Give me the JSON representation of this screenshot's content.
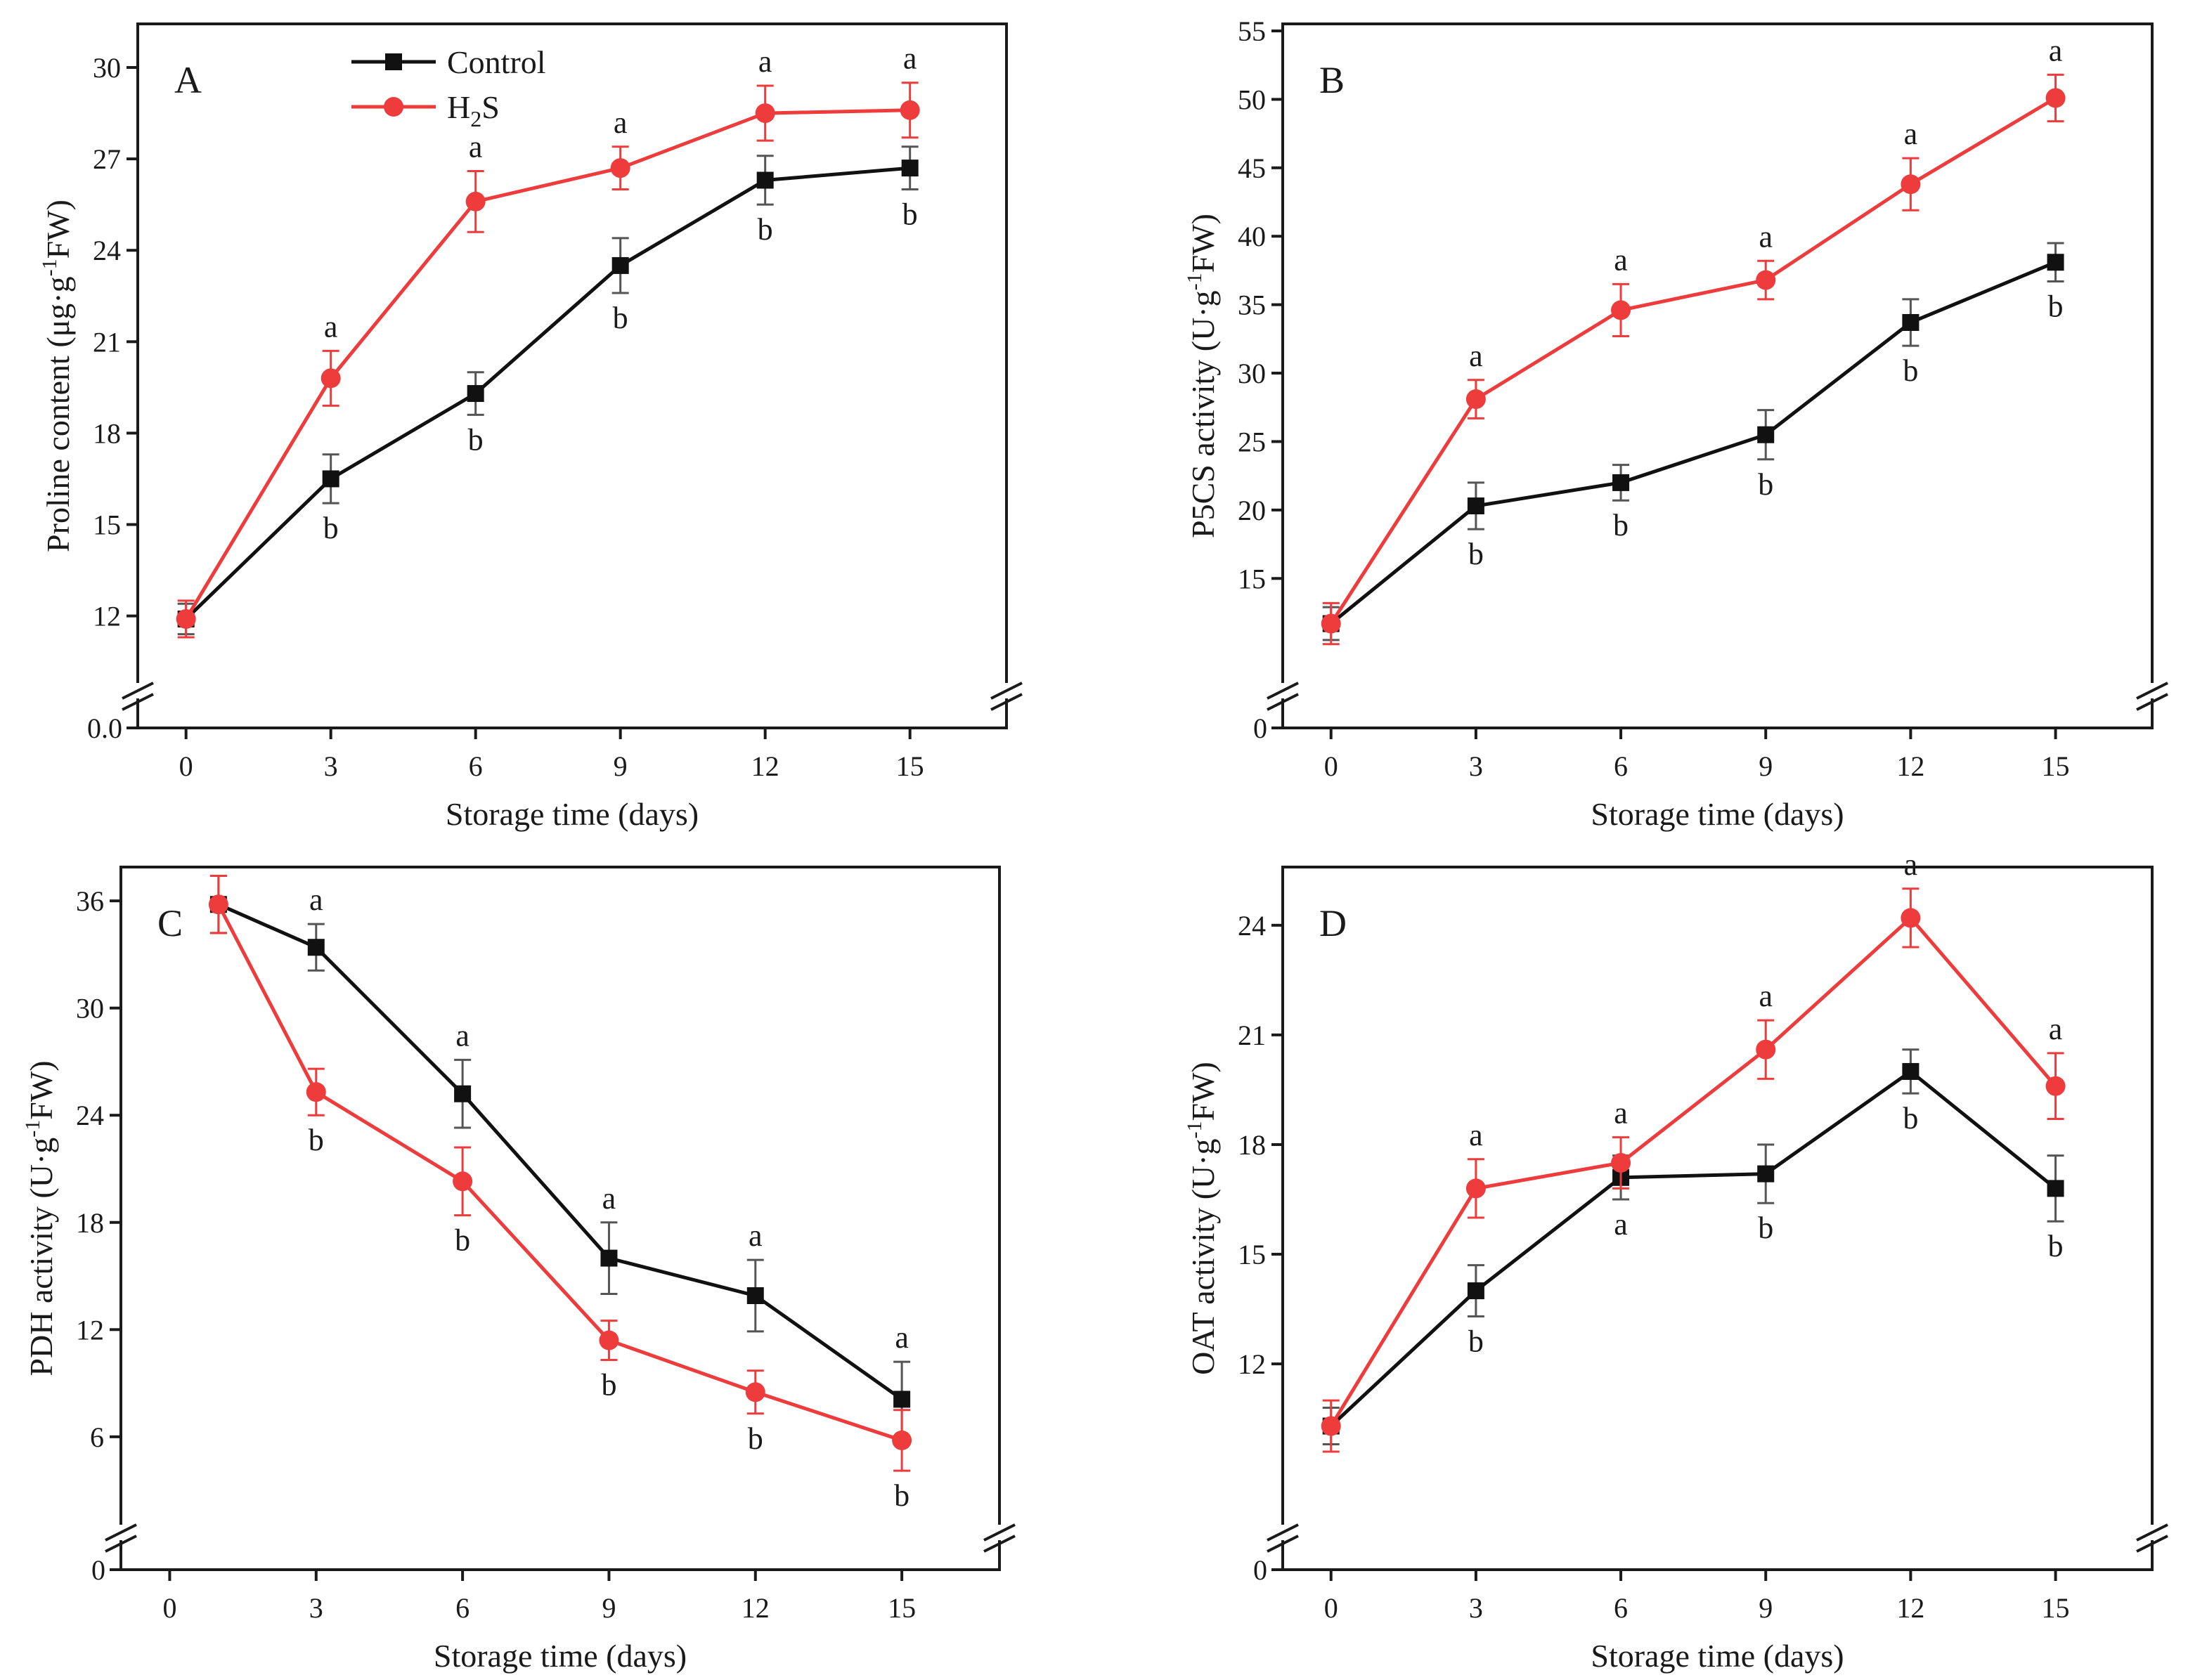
{
  "figure": {
    "legend": {
      "control": {
        "label": "Control",
        "color": "#111111",
        "marker": "square"
      },
      "h2s": {
        "label_main": "H",
        "label_sub": "2",
        "label_end": "S",
        "color": "#ee3b3b",
        "marker": "circle"
      }
    }
  },
  "chart_data": [
    {
      "panel": "A",
      "type": "line",
      "letter": "A",
      "xlabel": "Storage time (days)",
      "ylabel_main": "Proline content (μg·g",
      "ylabel_sup": "-1",
      "ylabel_end": "FW)",
      "x": [
        0,
        3,
        6,
        9,
        12,
        15
      ],
      "xticks": [
        "0",
        "3",
        "6",
        "9",
        "12",
        "15"
      ],
      "xlim": [
        -1,
        17
      ],
      "yticks": [
        {
          "v": 12,
          "label": "12"
        },
        {
          "v": 15,
          "label": "15"
        },
        {
          "v": 18,
          "label": "18"
        },
        {
          "v": 21,
          "label": "21"
        },
        {
          "v": 24,
          "label": "24"
        },
        {
          "v": 27,
          "label": "27"
        },
        {
          "v": 30,
          "label": "30"
        }
      ],
      "ylim": [
        10.4,
        31.2
      ],
      "bottom_label": "0.0",
      "legend": true,
      "series": [
        {
          "name": "Control",
          "color": "#111111",
          "marker": "square",
          "values": [
            11.9,
            16.5,
            19.3,
            23.5,
            26.3,
            26.7
          ],
          "errors": [
            0.5,
            0.8,
            0.7,
            0.9,
            0.8,
            0.7
          ],
          "letters": [
            "",
            "b",
            "b",
            "b",
            "b",
            "b"
          ],
          "letter_pos": [
            "",
            "below",
            "below",
            "below",
            "below",
            "below"
          ]
        },
        {
          "name": "H2S",
          "color": "#ee3b3b",
          "marker": "circle",
          "values": [
            11.9,
            19.8,
            25.6,
            26.7,
            28.5,
            28.6
          ],
          "errors": [
            0.6,
            0.9,
            1.0,
            0.7,
            0.9,
            0.9
          ],
          "letters": [
            "",
            "a",
            "a",
            "a",
            "a",
            "a"
          ],
          "letter_pos": [
            "",
            "above",
            "above",
            "above",
            "above",
            "above"
          ]
        }
      ]
    },
    {
      "panel": "B",
      "type": "line",
      "letter": "B",
      "xlabel": "Storage time (days)",
      "ylabel_main": "P5CS activity (U·g",
      "ylabel_sup": "-1",
      "ylabel_end": "FW)",
      "x": [
        0,
        3,
        6,
        9,
        12,
        15
      ],
      "xticks": [
        "0",
        "3",
        "6",
        "9",
        "12",
        "15"
      ],
      "xlim": [
        -1,
        17
      ],
      "yticks": [
        {
          "v": 15,
          "label": "15"
        },
        {
          "v": 20,
          "label": "20"
        },
        {
          "v": 25,
          "label": "25"
        },
        {
          "v": 30,
          "label": "30"
        },
        {
          "v": 35,
          "label": "35"
        },
        {
          "v": 40,
          "label": "40"
        },
        {
          "v": 45,
          "label": "45"
        },
        {
          "v": 50,
          "label": "50"
        },
        {
          "v": 55,
          "label": "55"
        }
      ],
      "ylim": [
        8.7,
        55
      ],
      "bottom_label": "0",
      "legend": false,
      "series": [
        {
          "name": "Control",
          "color": "#111111",
          "marker": "square",
          "values": [
            11.7,
            20.3,
            22.0,
            25.5,
            33.7,
            38.1
          ],
          "errors": [
            1.2,
            1.7,
            1.3,
            1.8,
            1.7,
            1.4
          ],
          "letters": [
            "",
            "b",
            "b",
            "b",
            "b",
            "b"
          ],
          "letter_pos": [
            "",
            "below",
            "below",
            "below",
            "below",
            "below"
          ]
        },
        {
          "name": "H2S",
          "color": "#ee3b3b",
          "marker": "circle",
          "values": [
            11.7,
            28.1,
            34.6,
            36.8,
            43.8,
            50.1
          ],
          "errors": [
            1.5,
            1.4,
            1.9,
            1.4,
            1.9,
            1.7
          ],
          "letters": [
            "",
            "a",
            "a",
            "a",
            "a",
            "a"
          ],
          "letter_pos": [
            "",
            "above",
            "above",
            "above",
            "above",
            "above"
          ]
        }
      ]
    },
    {
      "panel": "C",
      "type": "line",
      "letter": "C",
      "xlabel": "Storage time (days)",
      "ylabel_main": "PDH activity (U·g",
      "ylabel_sup": "-1",
      "ylabel_end": "FW)",
      "x": [
        1,
        3,
        6,
        9,
        12,
        15
      ],
      "xticks": [
        "0",
        "3",
        "6",
        "9",
        "12",
        "15"
      ],
      "xtick_values": [
        0,
        3,
        6,
        9,
        12,
        15
      ],
      "xlim": [
        -1,
        17
      ],
      "yticks": [
        {
          "v": 6,
          "label": "6"
        },
        {
          "v": 12,
          "label": "12"
        },
        {
          "v": 18,
          "label": "18"
        },
        {
          "v": 24,
          "label": "24"
        },
        {
          "v": 30,
          "label": "30"
        },
        {
          "v": 36,
          "label": "36"
        }
      ],
      "ylim": [
        2.1,
        37.5
      ],
      "bottom_label": "0",
      "legend": false,
      "series": [
        {
          "name": "Control",
          "color": "#111111",
          "marker": "square",
          "values": [
            35.8,
            33.4,
            25.2,
            16.0,
            13.9,
            8.1
          ],
          "errors": [
            1.6,
            1.3,
            1.9,
            2.0,
            2.0,
            2.1
          ],
          "letters": [
            "",
            "a",
            "a",
            "a",
            "a",
            "a"
          ],
          "letter_pos": [
            "",
            "above",
            "above",
            "above",
            "above",
            "above"
          ]
        },
        {
          "name": "H2S",
          "color": "#ee3b3b",
          "marker": "circle",
          "values": [
            35.8,
            25.3,
            20.3,
            11.4,
            8.5,
            5.8
          ],
          "errors": [
            1.6,
            1.3,
            1.9,
            1.1,
            1.2,
            1.7
          ],
          "letters": [
            "",
            "b",
            "b",
            "b",
            "b",
            "b"
          ],
          "letter_pos": [
            "",
            "below",
            "below",
            "below",
            "below",
            "below"
          ]
        }
      ]
    },
    {
      "panel": "D",
      "type": "line",
      "letter": "D",
      "xlabel": "Storage time (days)",
      "ylabel_main": "OAT activity (U·g",
      "ylabel_sup": "-1",
      "ylabel_end": "FW)",
      "x": [
        0,
        3,
        6,
        9,
        12,
        15
      ],
      "xticks": [
        "0",
        "3",
        "6",
        "9",
        "12",
        "15"
      ],
      "xlim": [
        -1,
        17
      ],
      "yticks": [
        {
          "v": 12,
          "label": "12"
        },
        {
          "v": 15,
          "label": "15"
        },
        {
          "v": 18,
          "label": "18"
        },
        {
          "v": 21,
          "label": "21"
        },
        {
          "v": 24,
          "label": "24"
        }
      ],
      "ylim": [
        8.1,
        25.4
      ],
      "bottom_label": "0",
      "legend": false,
      "series": [
        {
          "name": "Control",
          "color": "#111111",
          "marker": "square",
          "values": [
            10.3,
            14.0,
            17.1,
            17.2,
            20.0,
            16.8
          ],
          "errors": [
            0.5,
            0.7,
            0.6,
            0.8,
            0.6,
            0.9
          ],
          "letters": [
            "",
            "b",
            "a",
            "b",
            "b",
            "b"
          ],
          "letter_pos": [
            "",
            "below",
            "below",
            "below",
            "below",
            "below"
          ]
        },
        {
          "name": "H2S",
          "color": "#ee3b3b",
          "marker": "circle",
          "values": [
            10.3,
            16.8,
            17.5,
            20.6,
            24.2,
            19.6
          ],
          "errors": [
            0.7,
            0.8,
            0.7,
            0.8,
            0.8,
            0.9
          ],
          "letters": [
            "",
            "a",
            "a",
            "a",
            "a",
            "a"
          ],
          "letter_pos": [
            "",
            "above",
            "above",
            "above",
            "above",
            "above"
          ]
        }
      ]
    }
  ]
}
